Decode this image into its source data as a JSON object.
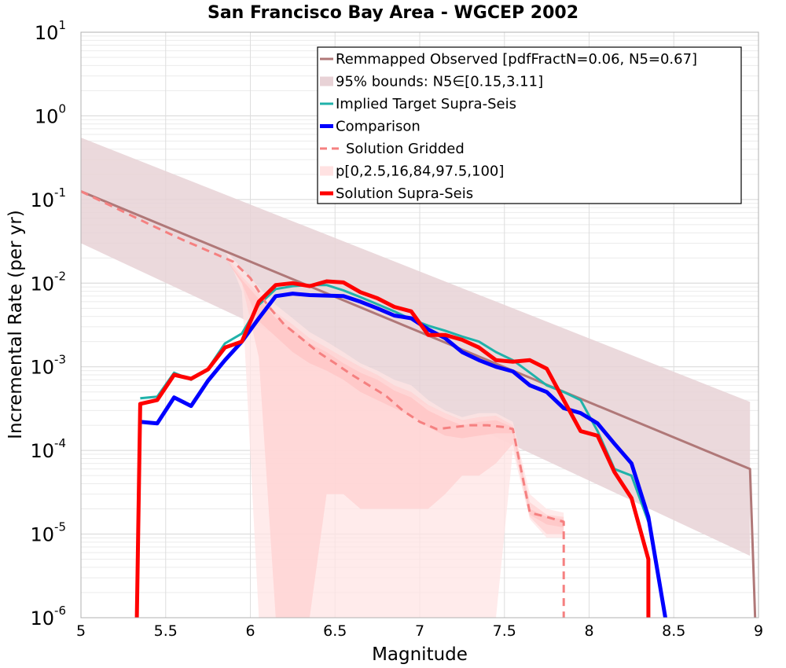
{
  "chart_data": {
    "type": "line",
    "title": "San Francisco Bay Area - WGCEP 2002",
    "xlabel": "Magnitude",
    "ylabel": "Incremental Rate (per yr)",
    "xlim": [
      5,
      9
    ],
    "ylim": [
      1e-06,
      10
    ],
    "yscale": "log",
    "grid": true,
    "legend_position": "top-right",
    "x_ticks": [
      "5",
      "5.5",
      "6",
      "6.5",
      "7",
      "7.5",
      "8",
      "8.5",
      "9"
    ],
    "y_ticks": [
      {
        "base": "10",
        "exp": "1"
      },
      {
        "base": "10",
        "exp": "0"
      },
      {
        "base": "10",
        "exp": "-1"
      },
      {
        "base": "10",
        "exp": "-2"
      },
      {
        "base": "10",
        "exp": "-3"
      },
      {
        "base": "10",
        "exp": "-4"
      },
      {
        "base": "10",
        "exp": "-5"
      },
      {
        "base": "10",
        "exp": "-6"
      }
    ],
    "legend": [
      {
        "label": "Remmapped Observed [pdfFractN=0.06, N5=0.67]",
        "style": "line",
        "color": "#b07878"
      },
      {
        "label": "95% bounds: N5∈[0.15,3.11]",
        "style": "band",
        "color": "#e8d2d6"
      },
      {
        "label": "Implied Target Supra-Seis",
        "style": "line",
        "color": "#20b2aa"
      },
      {
        "label": "Comparison",
        "style": "thick",
        "color": "#0000ff"
      },
      {
        "label": "Solution Gridded",
        "style": "dashed",
        "color": "#f58080"
      },
      {
        "label": "p[0,2.5,16,84,97.5,100]",
        "style": "band",
        "color": "#ffe2e2"
      },
      {
        "label": "Solution Supra-Seis",
        "style": "thick",
        "color": "#ff0000"
      }
    ],
    "bounds_band": {
      "x": [
        5,
        8.95
      ],
      "lower": [
        0.03,
        5.5e-06
      ],
      "upper": [
        0.55,
        0.00038
      ],
      "color": "#e8d2d6"
    },
    "percentile_bands": [
      {
        "name": "p0-100",
        "color": "#ffe4e4",
        "x": [
          5.85,
          5.95,
          6.05,
          6.15,
          6.25,
          6.35,
          6.45,
          6.55,
          6.65,
          6.75,
          6.85,
          6.95,
          7.05,
          7.15,
          7.25,
          7.35,
          7.45,
          7.55,
          7.65,
          7.75,
          7.85
        ],
        "upper": [
          0.025,
          0.015,
          0.009,
          0.0055,
          0.0038,
          0.0026,
          0.002,
          0.0015,
          0.0011,
          0.0009,
          0.0007,
          0.0006,
          0.0004,
          0.0003,
          0.00025,
          0.00028,
          0.00028,
          0.00022,
          3e-05,
          2e-05,
          1.8e-05
        ],
        "lower": [
          0.025,
          0.008,
          1e-06,
          1e-06,
          1e-06,
          1e-06,
          1e-06,
          1e-06,
          1e-06,
          1e-06,
          1e-06,
          1e-06,
          1e-06,
          1e-06,
          1e-06,
          1e-06,
          1e-06,
          0.0001,
          1.5e-05,
          9e-06,
          9e-06
        ]
      },
      {
        "name": "p2.5-97.5",
        "color": "#ffd2d2",
        "x": [
          5.85,
          5.95,
          6.05,
          6.15,
          6.25,
          6.35,
          6.45,
          6.55,
          6.65,
          6.75,
          6.85,
          6.95,
          7.05,
          7.15,
          7.25,
          7.35,
          7.45,
          7.55,
          7.65,
          7.75,
          7.85
        ],
        "upper": [
          0.022,
          0.012,
          0.0075,
          0.0045,
          0.0032,
          0.0022,
          0.0017,
          0.0013,
          0.001,
          0.0008,
          0.0006,
          0.0005,
          0.00035,
          0.00028,
          0.00023,
          0.00025,
          0.00026,
          0.0002,
          2.4e-05,
          1.7e-05,
          1.6e-05
        ],
        "lower": [
          0.022,
          0.01,
          0.0013,
          1e-06,
          1e-06,
          1e-06,
          3e-05,
          3e-05,
          2e-05,
          2e-05,
          2e-05,
          2e-05,
          2e-05,
          3e-05,
          5e-05,
          5e-05,
          7e-05,
          0.00012,
          1.6e-05,
          1e-05,
          1e-05
        ]
      },
      {
        "name": "p16-84",
        "color": "#ffc4c4",
        "x": [
          5.85,
          5.95,
          6.05,
          6.15,
          6.25,
          6.35,
          6.45,
          6.55,
          6.65,
          6.75,
          6.85,
          6.95,
          7.05,
          7.15,
          7.25,
          7.35,
          7.45,
          7.55,
          7.65,
          7.75,
          7.85
        ],
        "upper": [
          0.02,
          0.011,
          0.0065,
          0.0038,
          0.0028,
          0.0019,
          0.0015,
          0.0011,
          0.00085,
          0.0007,
          0.00052,
          0.00043,
          0.0003,
          0.00024,
          0.0002,
          0.00022,
          0.00023,
          0.00019,
          2e-05,
          1.6e-05,
          1.5e-05
        ],
        "lower": [
          0.02,
          0.01,
          0.0035,
          0.0023,
          0.0015,
          0.0011,
          0.0009,
          0.0007,
          0.0005,
          0.0004,
          0.00032,
          0.00026,
          0.00019,
          0.00015,
          0.00014,
          0.00015,
          0.00016,
          0.00016,
          1.7e-05,
          1.3e-05,
          1.2e-05
        ]
      }
    ],
    "series": [
      {
        "name": "Remmapped Observed [pdfFractN=0.06, N5=0.67]",
        "color": "#b07878",
        "width": 3,
        "x": [
          5,
          8.95,
          8.98
        ],
        "y": [
          0.125,
          6e-05,
          1e-06
        ]
      },
      {
        "name": "Implied Target Supra-Seis",
        "color": "#20b2aa",
        "width": 3,
        "x": [
          5.35,
          5.45,
          5.55,
          5.65,
          5.75,
          5.85,
          5.95,
          6.05,
          6.15,
          6.25,
          6.35,
          6.45,
          6.55,
          6.65,
          6.75,
          6.85,
          6.95,
          7.05,
          7.15,
          7.25,
          7.35,
          7.45,
          7.55,
          7.65,
          7.75,
          7.85,
          7.95,
          8.05,
          8.15,
          8.25,
          8.35
        ],
        "y": [
          0.00042,
          0.00044,
          0.00085,
          0.0007,
          0.00095,
          0.0019,
          0.0025,
          0.0055,
          0.0085,
          0.0092,
          0.0095,
          0.0095,
          0.0082,
          0.0068,
          0.0056,
          0.0046,
          0.0037,
          0.0031,
          0.0027,
          0.0023,
          0.002,
          0.0015,
          0.0012,
          0.00085,
          0.0006,
          0.0005,
          0.0004,
          0.00017,
          6e-05,
          5e-05,
          1.4e-05
        ]
      },
      {
        "name": "Comparison",
        "color": "#0000ff",
        "width": 5,
        "x": [
          5.35,
          5.45,
          5.55,
          5.65,
          5.75,
          5.85,
          5.95,
          6.05,
          6.15,
          6.25,
          6.35,
          6.45,
          6.55,
          6.65,
          6.75,
          6.85,
          6.95,
          7.05,
          7.15,
          7.25,
          7.35,
          7.45,
          7.55,
          7.65,
          7.75,
          7.85,
          7.95,
          8.05,
          8.15,
          8.25,
          8.35,
          8.45
        ],
        "y": [
          0.00022,
          0.00021,
          0.00043,
          0.00034,
          0.00068,
          0.0012,
          0.002,
          0.0038,
          0.007,
          0.0075,
          0.0072,
          0.0071,
          0.007,
          0.006,
          0.005,
          0.0041,
          0.0038,
          0.0028,
          0.0022,
          0.0015,
          0.0012,
          0.001,
          0.00088,
          0.0006,
          0.0005,
          0.00032,
          0.00028,
          0.00021,
          0.00012,
          7e-05,
          1.6e-05,
          1e-06
        ]
      },
      {
        "name": "Solution Gridded",
        "color": "#f58080",
        "width": 3,
        "dashed": true,
        "x": [
          5,
          5.1,
          5.2,
          5.3,
          5.4,
          5.5,
          5.6,
          5.7,
          5.8,
          5.9,
          6.0,
          6.1,
          6.2,
          6.3,
          6.4,
          6.5,
          6.6,
          6.7,
          6.8,
          6.9,
          7.0,
          7.1,
          7.2,
          7.3,
          7.4,
          7.5,
          7.55,
          7.65,
          7.75,
          7.85,
          7.85
        ],
        "y": [
          0.125,
          0.1,
          0.08,
          0.064,
          0.051,
          0.041,
          0.033,
          0.027,
          0.022,
          0.018,
          0.0115,
          0.0055,
          0.0032,
          0.0022,
          0.0015,
          0.0011,
          0.0008,
          0.0006,
          0.00045,
          0.0003,
          0.00022,
          0.00018,
          0.00019,
          0.0002,
          0.0002,
          0.00019,
          0.00018,
          1.8e-05,
          1.6e-05,
          1.4e-05,
          1e-06
        ]
      },
      {
        "name": "Solution Supra-Seis",
        "color": "#ff0000",
        "width": 5,
        "x": [
          5.33,
          5.35,
          5.45,
          5.55,
          5.65,
          5.75,
          5.85,
          5.95,
          6.05,
          6.15,
          6.25,
          6.35,
          6.45,
          6.55,
          6.65,
          6.75,
          6.85,
          6.95,
          7.05,
          7.15,
          7.25,
          7.35,
          7.45,
          7.55,
          7.65,
          7.75,
          7.85,
          7.95,
          8.05,
          8.15,
          8.25,
          8.35,
          8.35
        ],
        "y": [
          1e-06,
          0.00036,
          0.0004,
          0.0008,
          0.00072,
          0.00093,
          0.0017,
          0.002,
          0.006,
          0.0095,
          0.01,
          0.0092,
          0.0105,
          0.0102,
          0.0078,
          0.0066,
          0.0052,
          0.0046,
          0.0024,
          0.0024,
          0.0021,
          0.0017,
          0.0012,
          0.00115,
          0.0012,
          0.00095,
          0.0004,
          0.00017,
          0.00015,
          5.5e-05,
          2.7e-05,
          5e-06,
          1e-06
        ]
      }
    ]
  }
}
